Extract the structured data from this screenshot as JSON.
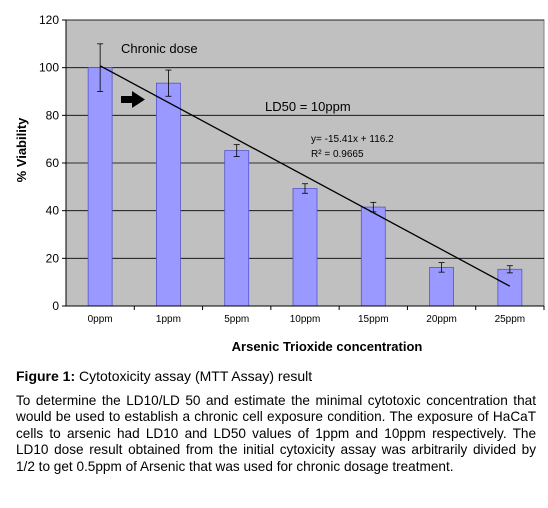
{
  "chart_data": {
    "type": "bar",
    "categories": [
      "0ppm",
      "1ppm",
      "5ppm",
      "10ppm",
      "15ppm",
      "20ppm",
      "25ppm"
    ],
    "series": [
      {
        "values": [
          100,
          93.5,
          65.2,
          49.3,
          41.5,
          16.2,
          15.4
        ],
        "error": [
          10,
          5.5,
          2.5,
          2,
          2,
          2,
          1.5
        ]
      }
    ],
    "trendline": {
      "from": [
        0,
        100.8
      ],
      "to": [
        6,
        8.3
      ]
    },
    "ylabel": "% Viability",
    "xlabel": "Arsenic Trioxide concentration",
    "ylim": [
      0,
      120
    ],
    "yticks": [
      "0",
      "20",
      "40",
      "60",
      "80",
      "100",
      "120"
    ],
    "grid": true,
    "colors": {
      "bar": "#9999ff",
      "bar_edge": "#5555cc",
      "plot_bg": "#c0c0c0",
      "gridline": "#000000"
    },
    "annotations": {
      "chronic": "Chronic dose",
      "ld50": "LD50 = 10ppm",
      "equation": "y= -15.41x + 116.2",
      "r2": "R² = 0.9665",
      "arrow_icon": "right-arrow"
    }
  },
  "caption": {
    "label": "Figure 1:",
    "text": "Cytotoxicity assay (MTT Assay) result"
  },
  "paragraph": "To determine the LD10/LD 50 and estimate the minimal cytotoxic concentration that would be used to establish a chronic cell exposure condition. The exposure of HaCaT cells to arsenic had LD10 and LD50 values of 1ppm and 10ppm respectively. The LD10 dose result obtained from the initial cytoxicity assay was arbitrarily divided by 1/2 to get 0.5ppm of Arsenic that was used for chronic dosage treatment."
}
